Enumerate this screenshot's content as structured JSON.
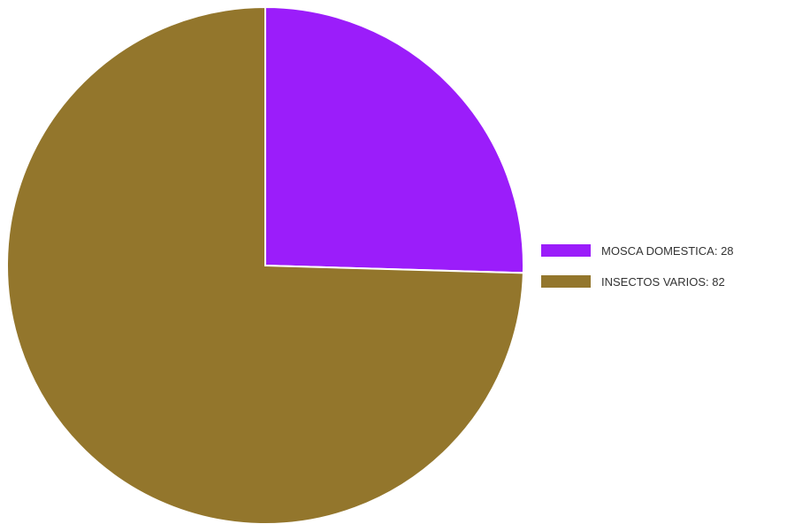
{
  "chart_data": {
    "type": "pie",
    "title": "",
    "legend_position": "right",
    "slices": [
      {
        "label": "MOSCA DOMESTICA",
        "value": 28,
        "color": "#9b1dfa"
      },
      {
        "label": "INSECTOS VARIOS",
        "value": 82,
        "color": "#93762c"
      }
    ],
    "legend": [
      "MOSCA DOMESTICA: 28",
      "INSECTOS VARIOS: 82"
    ]
  }
}
